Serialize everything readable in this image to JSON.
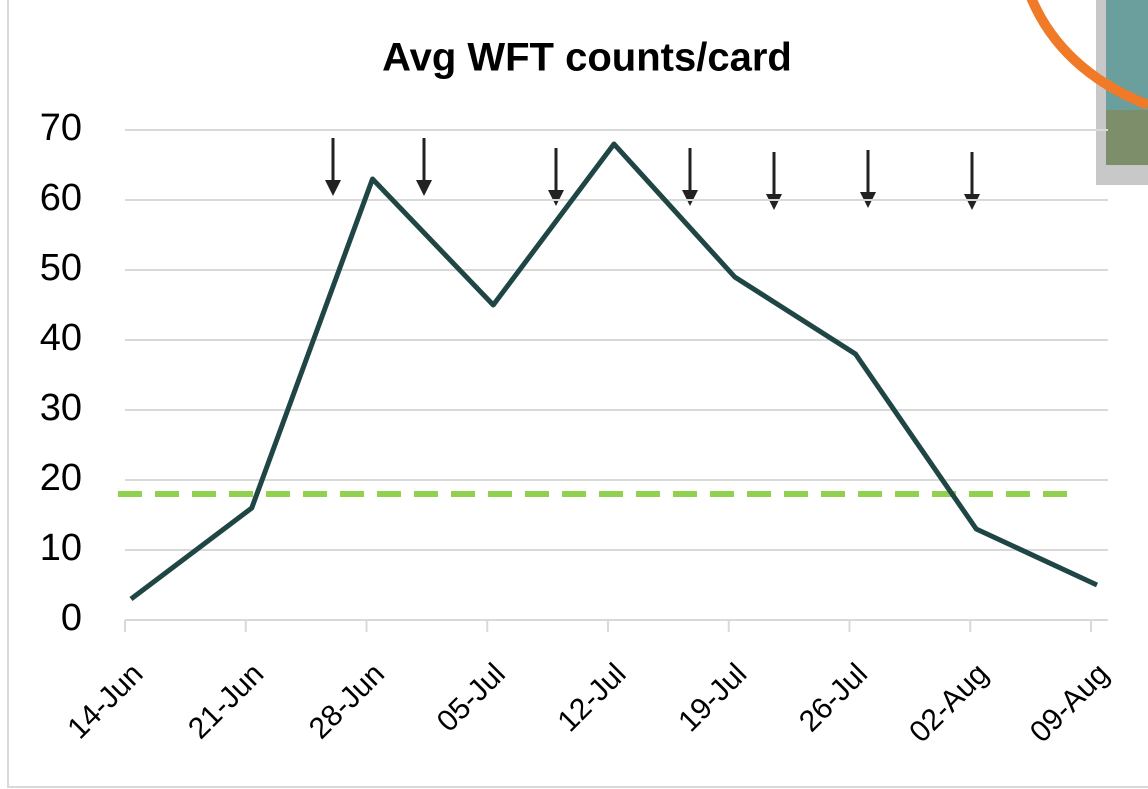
{
  "chart_data": {
    "type": "line",
    "title": "Avg WFT counts/card",
    "categories": [
      "14-Jun",
      "21-Jun",
      "28-Jun",
      "05-Jul",
      "12-Jul",
      "19-Jul",
      "26-Jul",
      "02-Aug",
      "09-Aug"
    ],
    "values": [
      3,
      16,
      63,
      45,
      68,
      49,
      38,
      13,
      5
    ],
    "color": "#1f4545",
    "ylim": [
      0,
      70
    ],
    "yticks": [
      0,
      10,
      20,
      30,
      40,
      50,
      60,
      70
    ],
    "grid": true,
    "reference_line": {
      "value": 18,
      "color": "#92d050"
    }
  }
}
